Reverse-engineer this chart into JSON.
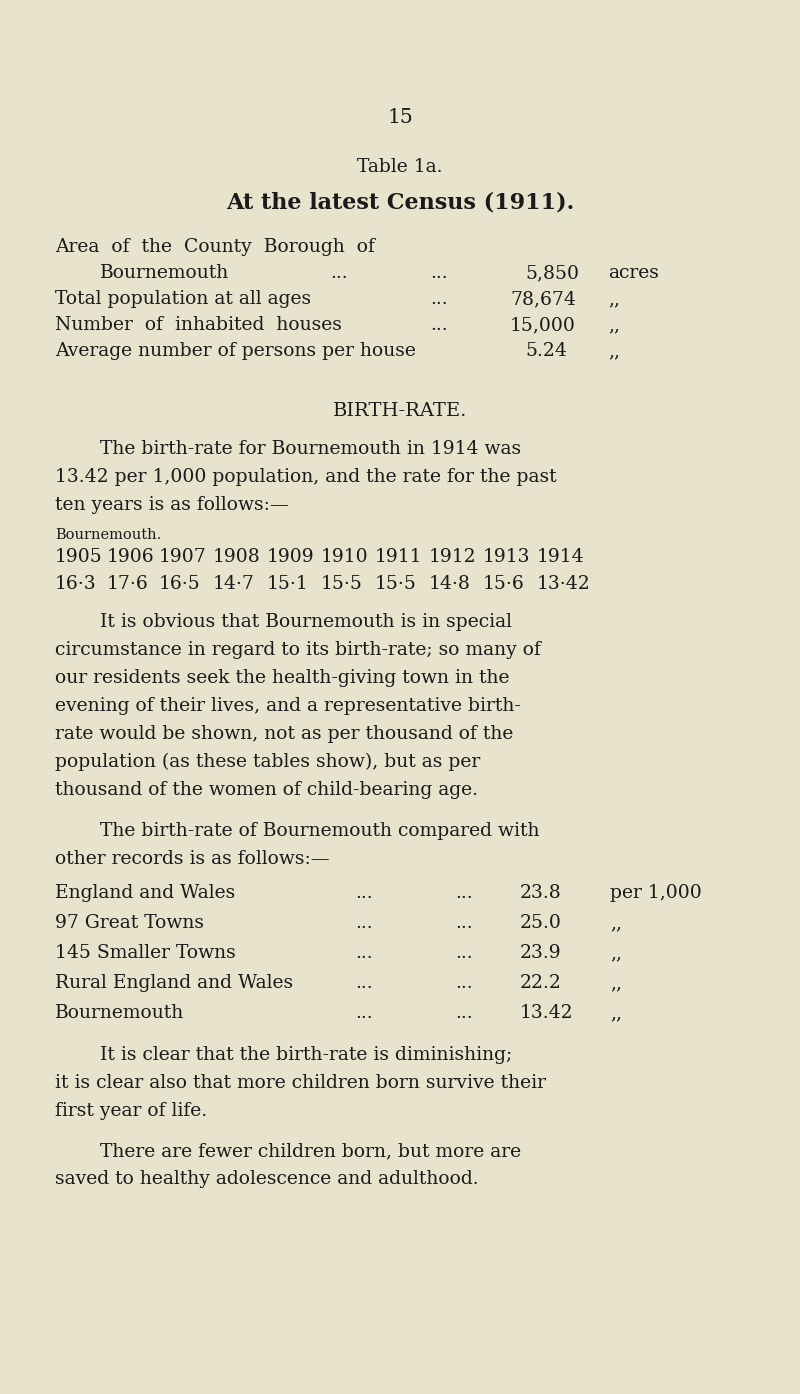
{
  "bg_color": "#e8e3cc",
  "text_color": "#1a1a1a",
  "page_number": "15",
  "table_label": "Table 1a.",
  "title": "At the latest Census (1911).",
  "birth_rate_heading": "BIRTH-RATE.",
  "bournemouth_label": "Bournemouth.",
  "years": [
    "1905",
    "1906",
    "1907",
    "1908",
    "1909",
    "1910",
    "1911",
    "1912",
    "1913",
    "1914"
  ],
  "rates": [
    "16·3",
    "17·6",
    "16·5",
    "14·7",
    "15·1",
    "15·5",
    "15·5",
    "14·8",
    "15·6",
    "13·42"
  ],
  "comparison_names": [
    "England and Wales",
    "97 Great Towns",
    "145 Smaller Towns",
    "Rural England and Wales",
    "Bournemouth"
  ],
  "comparison_values": [
    "23.8",
    "25.0",
    "23.9",
    "22.2",
    "13.42"
  ],
  "comparison_units": [
    "per 1,000",
    ",,",
    ",,",
    ",,",
    ",,"
  ]
}
